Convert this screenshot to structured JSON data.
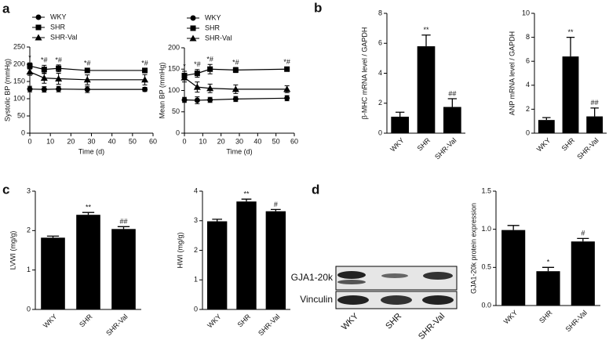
{
  "panels": [
    "a",
    "b",
    "c",
    "d"
  ],
  "blot": {
    "rows": [
      "GJA1-20k",
      "Vinculin"
    ],
    "lanes": [
      "WKY",
      "SHR",
      "SHR-Val"
    ]
  },
  "chart_data": [
    {
      "type": "line",
      "y_label": "Systolic BP (mmHg)",
      "x_label": "Time (d)",
      "legend": "upper left",
      "x": [
        0,
        7,
        14,
        28,
        56
      ],
      "xlim": [
        0,
        60
      ],
      "xticks": [
        0,
        10,
        20,
        30,
        40,
        50,
        60
      ],
      "ylim": [
        0,
        250
      ],
      "yticks": [
        0,
        50,
        100,
        150,
        200,
        250
      ],
      "significance": [
        "*",
        "*#",
        "*#",
        "*#",
        "*#"
      ],
      "series": [
        {
          "name": "WKY",
          "marker": "circle",
          "color": "#000000",
          "values": [
            128,
            127,
            128,
            127,
            127
          ],
          "errors": [
            8,
            8,
            8,
            9,
            6
          ]
        },
        {
          "name": "SHR",
          "marker": "square",
          "color": "#000000",
          "values": [
            195,
            185,
            188,
            182,
            182
          ],
          "errors": [
            9,
            12,
            10,
            6,
            6
          ]
        },
        {
          "name": "SHR-Val",
          "marker": "triangle",
          "color": "#000000",
          "values": [
            178,
            160,
            158,
            155,
            155
          ],
          "errors": [
            10,
            15,
            16,
            14,
            15
          ]
        }
      ]
    },
    {
      "type": "line",
      "y_label": "Mean BP (mmHg)",
      "x_label": "Time (d)",
      "legend": "upper left",
      "x": [
        0,
        7,
        14,
        28,
        56
      ],
      "xlim": [
        0,
        60
      ],
      "xticks": [
        0,
        10,
        20,
        30,
        40,
        50,
        60
      ],
      "ylim": [
        0,
        200
      ],
      "yticks": [
        0,
        50,
        100,
        150,
        200
      ],
      "significance": [
        "*",
        "*#",
        "*#",
        "*#",
        "*#"
      ],
      "series": [
        {
          "name": "WKY",
          "marker": "circle",
          "color": "#000000",
          "values": [
            78,
            77,
            78,
            80,
            82
          ],
          "errors": [
            6,
            8,
            6,
            6,
            6
          ]
        },
        {
          "name": "SHR",
          "marker": "square",
          "color": "#000000",
          "values": [
            135,
            140,
            150,
            148,
            150
          ],
          "errors": [
            10,
            9,
            11,
            6,
            5
          ]
        },
        {
          "name": "SHR-Val",
          "marker": "triangle",
          "color": "#000000",
          "values": [
            130,
            108,
            105,
            103,
            103
          ],
          "errors": [
            10,
            12,
            10,
            10,
            8
          ]
        }
      ]
    },
    {
      "type": "bar",
      "y_label": "β-MHC mRNA level / GAPDH",
      "color": "#000000",
      "categories": [
        "WKY",
        "SHR",
        "SHR-Val"
      ],
      "values": [
        1.1,
        5.8,
        1.75
      ],
      "errors": [
        0.3,
        0.75,
        0.55
      ],
      "significance": [
        null,
        "**",
        "##"
      ],
      "ylim": [
        0,
        8
      ],
      "yticks": [
        0,
        2,
        4,
        6,
        8
      ]
    },
    {
      "type": "bar",
      "y_label": "ANP mRNA level / GAPDH",
      "color": "#000000",
      "categories": [
        "WKY",
        "SHR",
        "SHR-Val"
      ],
      "values": [
        1.1,
        6.4,
        1.4
      ],
      "errors": [
        0.2,
        1.6,
        0.7
      ],
      "significance": [
        null,
        "**",
        "##"
      ],
      "ylim": [
        0,
        10
      ],
      "yticks": [
        0,
        2,
        4,
        6,
        8,
        10
      ]
    },
    {
      "type": "bar",
      "y_label": "LVWI (mg/g)",
      "color": "#000000",
      "categories": [
        "WKY",
        "SHR",
        "SHR-Val"
      ],
      "values": [
        1.82,
        2.4,
        2.04
      ],
      "errors": [
        0.04,
        0.06,
        0.06
      ],
      "significance": [
        null,
        "**",
        "##"
      ],
      "ylim": [
        0,
        3
      ],
      "yticks": [
        0,
        1,
        2,
        3
      ]
    },
    {
      "type": "bar",
      "y_label": "HWI (mg/g)",
      "color": "#000000",
      "categories": [
        "WKY",
        "SHR",
        "SHR-Val"
      ],
      "values": [
        2.98,
        3.65,
        3.32
      ],
      "errors": [
        0.07,
        0.08,
        0.06
      ],
      "significance": [
        null,
        "**",
        "#"
      ],
      "ylim": [
        0,
        4
      ],
      "yticks": [
        0,
        1,
        2,
        3,
        4
      ]
    },
    {
      "type": "bar",
      "y_label": "GJA1-20k protein expression",
      "color": "#000000",
      "categories": [
        "WKY",
        "SHR",
        "SHR-Val"
      ],
      "values": [
        0.99,
        0.45,
        0.84
      ],
      "errors": [
        0.06,
        0.05,
        0.04
      ],
      "significance": [
        null,
        "*",
        "#"
      ],
      "ylim": [
        0,
        1.5
      ],
      "yticks": [
        {
          "value": 0,
          "label": "0.0"
        },
        0.5,
        {
          "value": 1,
          "label": "1.0"
        },
        1.5
      ]
    }
  ]
}
